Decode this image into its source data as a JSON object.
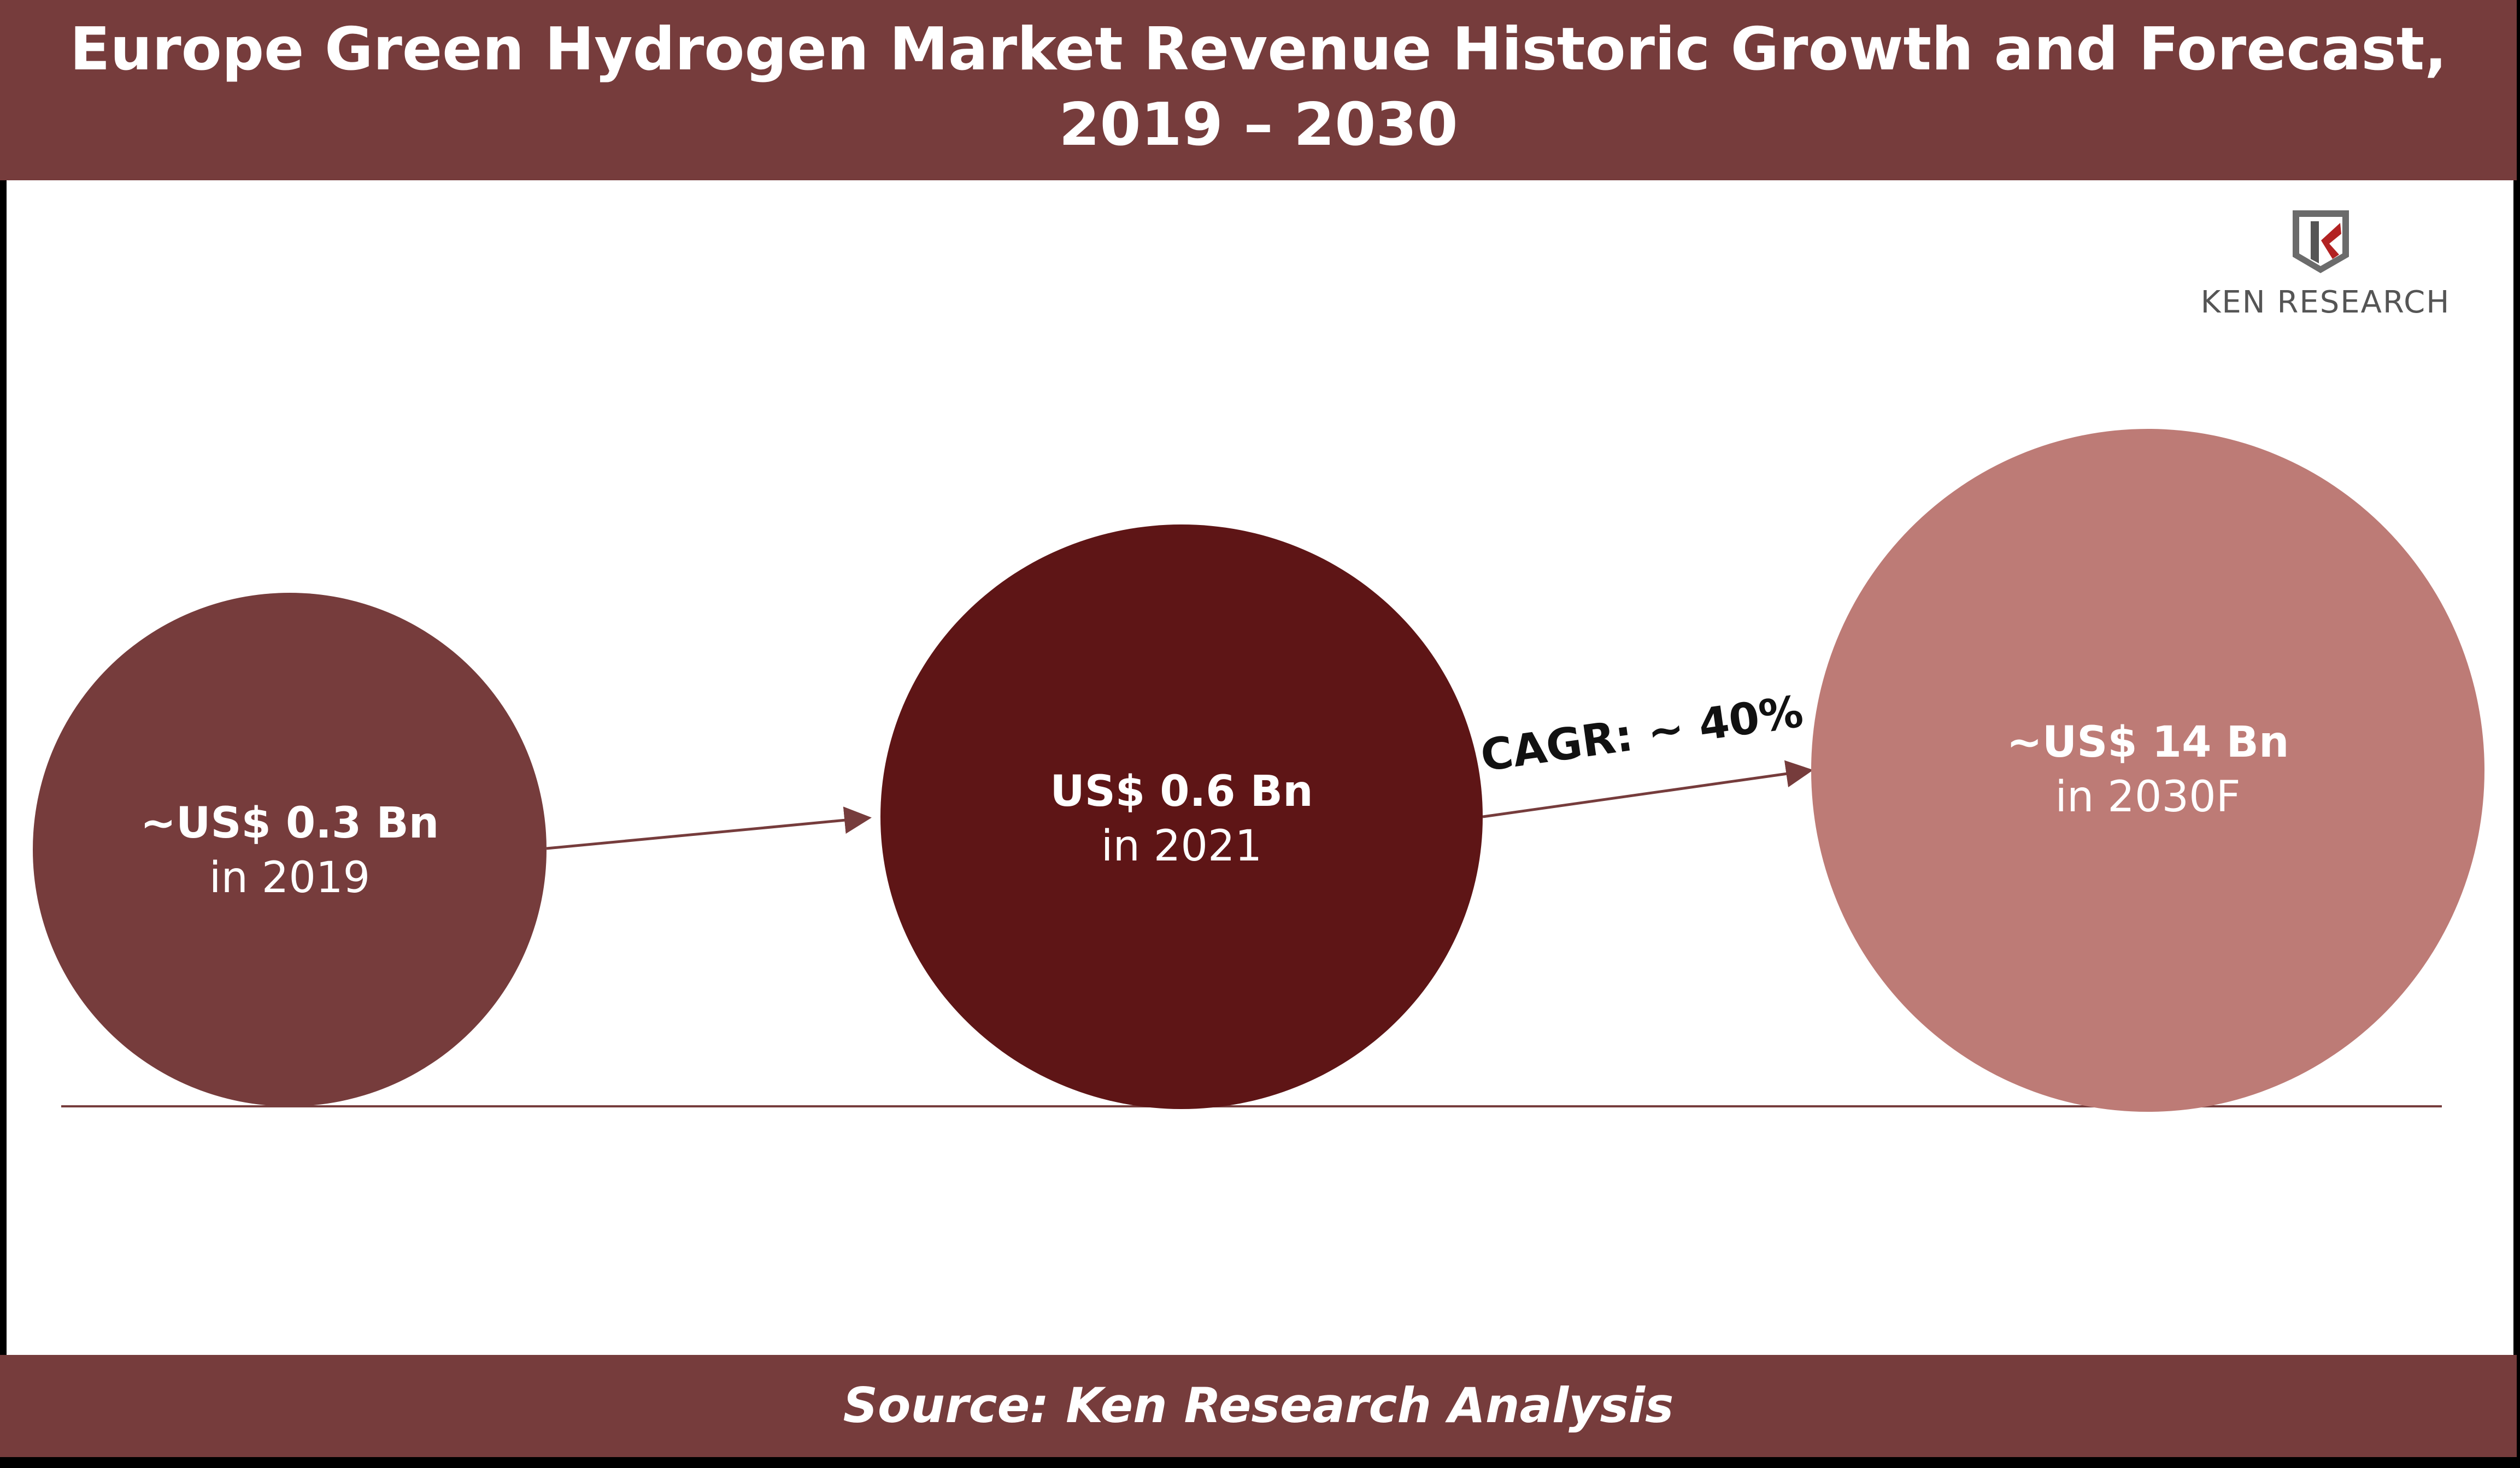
{
  "header": {
    "title_line1": "Europe Green Hydrogen Market Revenue Historic Growth and Forecast,",
    "title_line2": "2019 – 2030"
  },
  "footer": {
    "source": "Source: Ken Research Analysis"
  },
  "logo": {
    "text": "KEN RESEARCH",
    "icon": "ken-research-k-shield-icon"
  },
  "colors": {
    "frame": "#763C3C",
    "bubble_2019": "#763C3C",
    "bubble_2021": "#5E1516",
    "bubble_2030": "#BD7B76",
    "arrow": "#763C3C",
    "baseline": "#763C3C"
  },
  "chart_data": {
    "type": "bubble",
    "unit": "US$ Bn",
    "points": [
      {
        "year": "2019",
        "value": 0.3,
        "value_label": "~US$ 0.3 Bn",
        "year_label": "in 2019"
      },
      {
        "year": "2021",
        "value": 0.6,
        "value_label": "US$ 0.6 Bn",
        "year_label": "in 2021"
      },
      {
        "year": "2030F",
        "value": 14,
        "value_label": "~US$ 14 Bn",
        "year_label": "in 2030F"
      }
    ],
    "annotations": [
      {
        "text": "CAGR: ~ 40%",
        "between": [
          "2021",
          "2030F"
        ]
      }
    ]
  }
}
